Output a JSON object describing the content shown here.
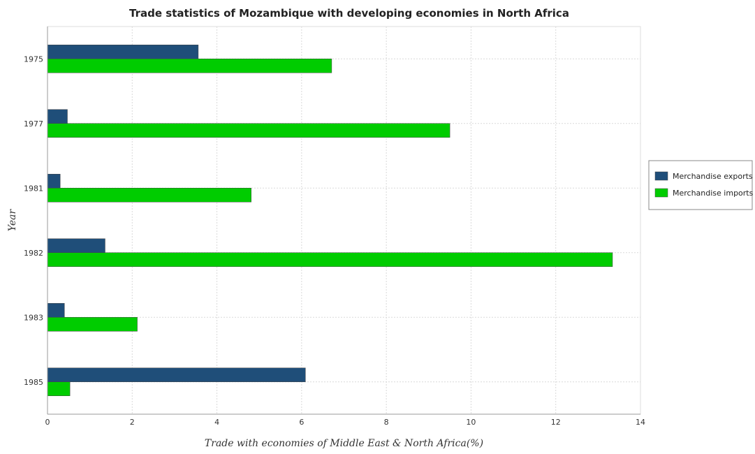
{
  "chart_data": {
    "type": "bar",
    "orientation": "horizontal",
    "title": "Trade statistics of Mozambique with developing economies in North Africa",
    "xlabel": "Trade with economies of Middle East & North Africa(%)",
    "ylabel": "Year",
    "categories": [
      "1975",
      "1977",
      "1981",
      "1982",
      "1983",
      "1985"
    ],
    "xlim": [
      0,
      14
    ],
    "xticks": [
      0,
      2,
      4,
      6,
      8,
      10,
      12,
      14
    ],
    "xtick_labels": [
      "0",
      "2",
      "4",
      "6",
      "8",
      "10",
      "12",
      "14"
    ],
    "grid": true,
    "legend_position": "right",
    "series": [
      {
        "name": "Merchandise exports",
        "color": "#1f4e79",
        "values": [
          3.56,
          0.47,
          0.3,
          1.36,
          0.4,
          6.09
        ]
      },
      {
        "name": "Merchandise imports",
        "color": "#00cc00",
        "values": [
          6.71,
          9.5,
          4.81,
          13.34,
          2.12,
          0.53
        ]
      }
    ]
  }
}
